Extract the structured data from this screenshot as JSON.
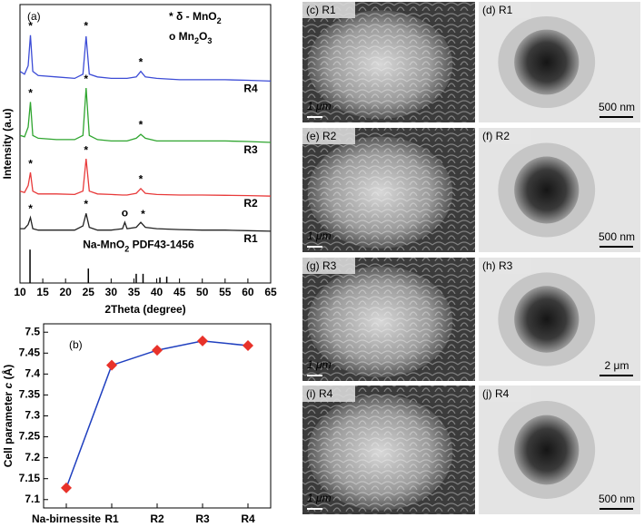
{
  "chart_data": [
    {
      "type": "line",
      "panel_label": "(a)",
      "xlabel": "2Theta (degree)",
      "ylabel": "Intensity (a.u)",
      "x": [
        10,
        11,
        11.8,
        12.3,
        12.8,
        14,
        18,
        22,
        23.8,
        24.5,
        25.2,
        27,
        30,
        32.5,
        33,
        33.5,
        35.5,
        36.5,
        37.5,
        40,
        45,
        50,
        55,
        60,
        65
      ],
      "xlim": [
        10,
        65
      ],
      "xticks": [
        10,
        15,
        20,
        25,
        30,
        35,
        40,
        45,
        50,
        55,
        60,
        65
      ],
      "ylim": [
        0,
        100
      ],
      "series": [
        {
          "name": "R4",
          "color": "#3c4cd6",
          "values": [
            76,
            75,
            78,
            89,
            76,
            74.5,
            74,
            73.5,
            75,
            88.6,
            75,
            74,
            73.5,
            73.5,
            73.5,
            73.5,
            74,
            76,
            74,
            73.5,
            73,
            73,
            73,
            72.8,
            72.5
          ]
        },
        {
          "name": "R3",
          "color": "#2fa52f",
          "values": [
            53,
            52.5,
            56,
            65,
            53,
            52,
            51.5,
            51.5,
            53,
            70,
            53,
            51.5,
            51,
            51,
            51,
            51,
            52,
            53.4,
            52,
            51,
            51,
            51,
            51,
            50.8,
            50.5
          ]
        },
        {
          "name": "R2",
          "color": "#e83a3a",
          "values": [
            33,
            32.5,
            35,
            39.7,
            33,
            32,
            32,
            31.8,
            33,
            44.6,
            33,
            32,
            31.8,
            31.6,
            31.6,
            31.6,
            32.2,
            33.9,
            32.2,
            31.8,
            31.6,
            31.6,
            31.5,
            31.4,
            31.2
          ]
        },
        {
          "name": "R1",
          "color": "#222222",
          "values": [
            19.5,
            19.5,
            21,
            23.5,
            19.5,
            19,
            19,
            19,
            20.5,
            25,
            20,
            19,
            19,
            19.5,
            21.8,
            19.5,
            20,
            21.8,
            20,
            19.5,
            19.2,
            19,
            19,
            18.8,
            18.6
          ]
        }
      ],
      "reference": {
        "label_parts": [
          "Na-MnO",
          "2",
          " PDF43-1456"
        ],
        "color": "#000000",
        "x": [
          12.2,
          25,
          35.5,
          37,
          40.7,
          42.2
        ],
        "values": [
          12,
          5.2,
          3.3,
          3.3,
          2,
          2.3
        ]
      },
      "legend": [
        {
          "parts": [
            "* δ - MnO",
            "2"
          ],
          "color": "#e8322a"
        },
        {
          "parts": [
            "o  Mn",
            "2",
            "O",
            "3"
          ],
          "color": "#000000"
        }
      ],
      "annotations": [
        {
          "text": "*",
          "x": 12.3,
          "y": 92,
          "color": "#e8322a"
        },
        {
          "text": "*",
          "x": 24.5,
          "y": 92,
          "color": "#e8322a"
        },
        {
          "text": "*",
          "x": 36.5,
          "y": 79,
          "color": "#e8322a"
        },
        {
          "text": "*",
          "x": 12.3,
          "y": 68,
          "color": "#e8322a"
        },
        {
          "text": "*",
          "x": 24.5,
          "y": 73,
          "color": "#e8322a"
        },
        {
          "text": "*",
          "x": 36.5,
          "y": 56.5,
          "color": "#e8322a"
        },
        {
          "text": "*",
          "x": 12.3,
          "y": 42.5,
          "color": "#e8322a"
        },
        {
          "text": "*",
          "x": 24.5,
          "y": 47.5,
          "color": "#e8322a"
        },
        {
          "text": "*",
          "x": 36.5,
          "y": 37,
          "color": "#e8322a"
        },
        {
          "text": "*",
          "x": 12.3,
          "y": 26.5,
          "color": "#e8322a"
        },
        {
          "text": "*",
          "x": 24.5,
          "y": 28,
          "color": "#e8322a"
        },
        {
          "text": "*",
          "x": 37,
          "y": 24.5,
          "color": "#e8322a"
        },
        {
          "text": "o",
          "x": 33,
          "y": 25,
          "color": "#000000"
        }
      ]
    },
    {
      "type": "line",
      "panel_label": "(b)",
      "ylabel_parts": [
        "Cell parameter ",
        "c",
        " (Å)"
      ],
      "categories": [
        "Na-birnessite",
        "R1",
        "R2",
        "R3",
        "R4"
      ],
      "values": [
        7.128,
        7.421,
        7.457,
        7.479,
        7.468
      ],
      "color": "#1f3fbf",
      "marker_color": "#e8322a",
      "ylim": [
        7.08,
        7.52
      ],
      "yticks": [
        7.1,
        7.15,
        7.2,
        7.25,
        7.3,
        7.35,
        7.4,
        7.45,
        7.5
      ]
    }
  ],
  "images": [
    {
      "label": "(c) R1",
      "scale_bar": "1 μm",
      "kind": "sem"
    },
    {
      "label": "(d) R1",
      "scale_bar": "500 nm",
      "kind": "tem"
    },
    {
      "label": "(e) R2",
      "scale_bar": "1 μm",
      "kind": "sem"
    },
    {
      "label": "(f) R2",
      "scale_bar": "500 nm",
      "kind": "tem"
    },
    {
      "label": "(g) R3",
      "scale_bar": "1 μm",
      "kind": "sem"
    },
    {
      "label": "(h) R3",
      "scale_bar": "2 μm",
      "kind": "tem"
    },
    {
      "label": "(i) R4",
      "scale_bar": "1 μm",
      "kind": "sem"
    },
    {
      "label": "(j) R4",
      "scale_bar": "500 nm",
      "kind": "tem"
    }
  ]
}
